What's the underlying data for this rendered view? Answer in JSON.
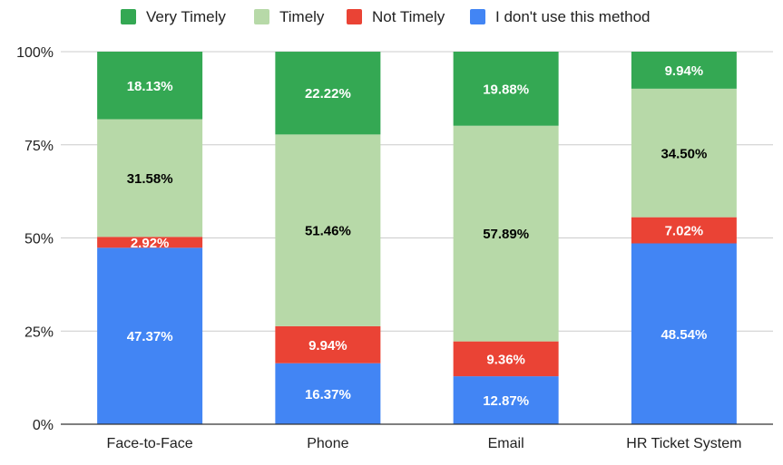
{
  "chart_data": {
    "type": "bar",
    "stacked": true,
    "percent_stacked": true,
    "categories": [
      "Face-to-Face",
      "Phone",
      "Email",
      "HR Ticket System"
    ],
    "series": [
      {
        "name": "I don't use this method",
        "color": "#4285f4",
        "label_color": "#ffffff",
        "values": [
          47.37,
          16.37,
          12.87,
          48.54
        ]
      },
      {
        "name": "Not Timely",
        "color": "#ea4335",
        "label_color": "#ffffff",
        "values": [
          2.92,
          9.94,
          9.36,
          7.02
        ]
      },
      {
        "name": "Timely",
        "color": "#b7d9a8",
        "label_color": "#000000",
        "values": [
          31.58,
          51.46,
          57.89,
          34.5
        ]
      },
      {
        "name": "Very Timely",
        "color": "#34a853",
        "label_color": "#ffffff",
        "values": [
          18.13,
          22.22,
          19.88,
          9.94
        ]
      }
    ],
    "legend_order": [
      "Very Timely",
      "Timely",
      "Not Timely",
      "I don't use this method"
    ],
    "legend_position": "top",
    "y_ticks": [
      "0%",
      "25%",
      "50%",
      "75%",
      "100%"
    ],
    "ylim": [
      0,
      100
    ],
    "grid": true
  }
}
